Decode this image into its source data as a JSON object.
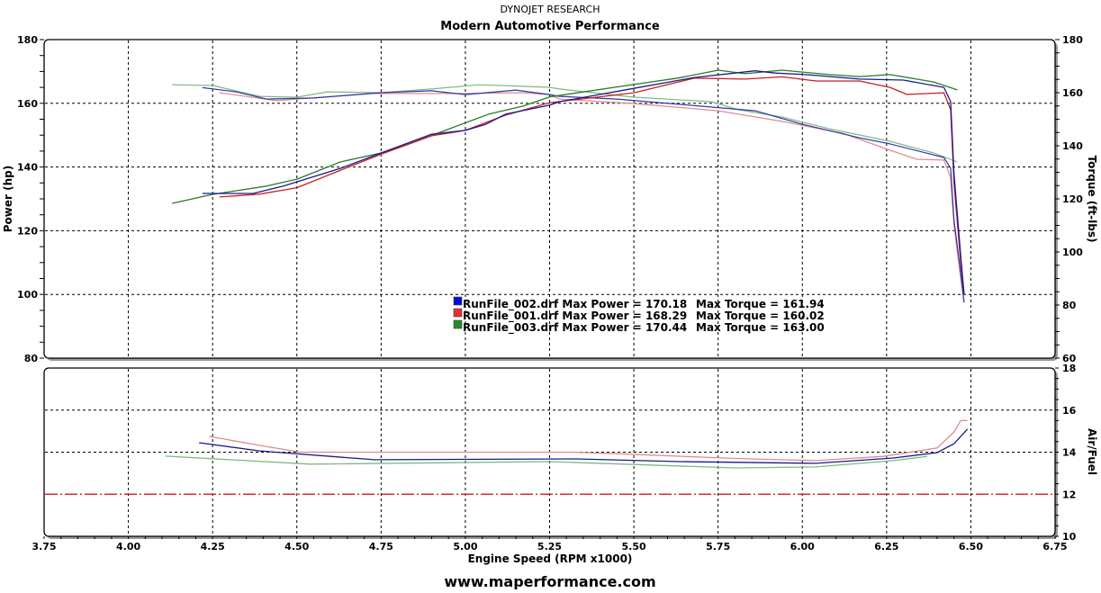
{
  "header": {
    "company": "DYNOJET RESEARCH",
    "title": "Modern Automotive Performance"
  },
  "footer": {
    "url": "www.maperformance.com"
  },
  "colors": {
    "RunFile_002": {
      "power": "#1a1a8c",
      "torque": "#2a3aa8",
      "afr": "#1a1a8c",
      "swatch": "#0010d0"
    },
    "RunFile_001": {
      "power": "#c82020",
      "torque": "#e08a8a",
      "afr": "#e08a8a",
      "swatch": "#e83030"
    },
    "RunFile_003": {
      "power": "#2a7a2a",
      "torque": "#80b880",
      "afr": "#80b880",
      "swatch": "#2a8a2a"
    },
    "target_line": "#d03030"
  },
  "legend": [
    {
      "file": "RunFile_002.drf",
      "text": "RunFile_002.drf Max Power = 170.18",
      "torque_text": "Max Torque = 161.94"
    },
    {
      "file": "RunFile_001.drf",
      "text": "RunFile_001.drf Max Power = 168.29",
      "torque_text": "Max Torque = 160.02"
    },
    {
      "file": "RunFile_003.drf",
      "text": "RunFile_003.drf Max Power = 170.44",
      "torque_text": "Max Torque = 163.00"
    }
  ],
  "chart_data": {
    "type": "line",
    "xlabel": "Engine Speed (RPM x1000)",
    "xlim": [
      3.75,
      6.75
    ],
    "xticks": [
      "3.75",
      "4.00",
      "4.25",
      "4.50",
      "4.75",
      "5.00",
      "5.25",
      "5.50",
      "5.75",
      "6.00",
      "6.25",
      "6.50",
      "6.75"
    ],
    "grid": true,
    "legend_placement": "center",
    "panels": [
      {
        "name": "power_torque",
        "ylabel_left": "Power (hp)",
        "ylim_left": [
          80,
          180
        ],
        "yticks_left": [
          "80",
          "100",
          "120",
          "140",
          "160",
          "180"
        ],
        "ylabel_right": "Torque (ft-lbs)",
        "ylim_right": [
          60,
          180
        ],
        "yticks_right": [
          "60",
          "80",
          "100",
          "120",
          "140",
          "160",
          "180"
        ],
        "series": [
          {
            "name": "RunFile_002.drf",
            "quantity": "power",
            "axis": "left",
            "x": [
              4.22,
              4.37,
              4.46,
              4.63,
              4.75,
              4.9,
              5.0,
              5.06,
              5.12,
              5.25,
              5.28,
              5.5,
              5.68,
              5.86,
              5.92,
              6.01,
              6.17,
              6.3,
              6.42,
              6.44,
              6.45,
              6.47,
              6.48
            ],
            "y": [
              131.7,
              131.7,
              134.0,
              139.6,
              144.4,
              150.3,
              151.5,
              153.4,
              156.6,
              159.4,
              160.5,
              164.7,
              168.1,
              170.2,
              169.5,
              169.0,
              167.6,
              167.3,
              165.0,
              160.5,
              137.9,
              112,
              100
            ]
          },
          {
            "name": "RunFile_001.drf",
            "quantity": "power",
            "axis": "left",
            "x": [
              4.27,
              4.39,
              4.5,
              4.63,
              4.75,
              4.9,
              5.0,
              5.12,
              5.25,
              5.5,
              5.68,
              5.83,
              5.94,
              6.04,
              6.17,
              6.26,
              6.31,
              6.42,
              6.44,
              6.45,
              6.47,
              6.48
            ],
            "y": [
              130.6,
              131.5,
              133.5,
              139.0,
              144.0,
              149.8,
              151.5,
              156.3,
              160.2,
              163.3,
              167.9,
              167.6,
              168.3,
              167.0,
              167.0,
              165.0,
              162.8,
              163.3,
              158.0,
              135.0,
              110,
              100
            ]
          },
          {
            "name": "RunFile_003.drf",
            "quantity": "power",
            "axis": "left",
            "x": [
              4.13,
              4.25,
              4.41,
              4.5,
              4.63,
              4.75,
              4.84,
              4.96,
              5.07,
              5.17,
              5.25,
              5.5,
              5.63,
              5.75,
              5.83,
              5.94,
              6.08,
              6.17,
              6.26,
              6.39,
              6.46
            ],
            "y": [
              128.6,
              131.4,
              134.0,
              136.2,
              141.6,
              144.4,
              147.5,
              152.3,
              156.6,
              159.1,
              162.0,
              165.9,
              167.9,
              170.4,
              169.3,
              170.4,
              169.0,
              168.4,
              169.0,
              166.7,
              164.2
            ]
          },
          {
            "name": "RunFile_002.drf",
            "quantity": "torque",
            "axis": "right",
            "x": [
              4.22,
              4.32,
              4.41,
              4.55,
              4.75,
              4.9,
              5.0,
              5.15,
              5.25,
              5.28,
              5.45,
              5.7,
              5.86,
              6.0,
              6.17,
              6.26,
              6.42,
              6.44,
              6.45,
              6.47,
              6.48
            ],
            "y": [
              161.9,
              160.3,
              157.6,
              158.0,
              160.0,
              160.7,
              159.3,
              161.0,
              159.3,
              158.6,
              157.6,
              154.9,
              153.2,
              148.1,
              143.0,
              140.7,
              135.6,
              131.5,
              112,
              92,
              81
            ]
          },
          {
            "name": "RunFile_001.drf",
            "quantity": "torque",
            "axis": "right",
            "x": [
              4.27,
              4.44,
              4.72,
              5.0,
              5.17,
              5.25,
              5.28,
              5.5,
              5.75,
              5.94,
              6.12,
              6.26,
              6.34,
              6.42,
              6.44,
              6.45,
              6.47,
              6.48
            ],
            "y": [
              160.0,
              157.0,
              159.7,
              159.7,
              160.0,
              159.3,
              157.6,
              155.9,
              153.2,
              149.2,
              144.7,
              138.3,
              134.9,
              134.6,
              128.0,
              110,
              90,
              81
            ]
          },
          {
            "name": "RunFile_003.drf",
            "quantity": "torque",
            "axis": "right",
            "x": [
              4.13,
              4.25,
              4.39,
              4.5,
              4.59,
              4.75,
              4.9,
              5.04,
              5.17,
              5.25,
              5.28,
              5.5,
              5.73,
              5.81,
              5.94,
              6.08,
              6.26,
              6.39,
              6.46
            ],
            "y": [
              163.0,
              162.7,
              158.6,
              158.3,
              160.3,
              160.0,
              161.4,
              163.0,
              162.4,
              162.0,
              161.4,
              158.3,
              156.6,
              153.6,
              150.8,
              146.4,
              141.7,
              137.3,
              133.9
            ]
          }
        ]
      },
      {
        "name": "air_fuel",
        "ylabel_right": "Air/Fuel",
        "ylim_right": [
          10,
          18
        ],
        "yticks_right": [
          "10",
          "12",
          "14",
          "16",
          "18"
        ],
        "target": 12,
        "series": [
          {
            "name": "RunFile_002.drf",
            "quantity": "afr",
            "x": [
              4.21,
              4.39,
              4.73,
              5.33,
              5.64,
              6.04,
              6.27,
              6.4,
              6.45,
              6.49
            ],
            "y": [
              14.45,
              14.06,
              13.64,
              13.68,
              13.55,
              13.47,
              13.72,
              13.98,
              14.4,
              15.1
            ]
          },
          {
            "name": "RunFile_001.drf",
            "quantity": "afr",
            "x": [
              4.24,
              4.39,
              4.51,
              5.32,
              5.49,
              5.8,
              6.04,
              6.24,
              6.4,
              6.45,
              6.47,
              6.49
            ],
            "y": [
              14.75,
              14.32,
              14.0,
              14.0,
              13.9,
              13.7,
              13.6,
              13.8,
              14.2,
              14.96,
              15.5,
              15.5
            ]
          },
          {
            "name": "RunFile_003.drf",
            "quantity": "afr",
            "x": [
              4.11,
              4.54,
              5.25,
              5.8,
              6.04,
              6.27,
              6.37
            ],
            "y": [
              13.81,
              13.43,
              13.55,
              13.25,
              13.3,
              13.6,
              13.8
            ]
          }
        ]
      }
    ]
  }
}
